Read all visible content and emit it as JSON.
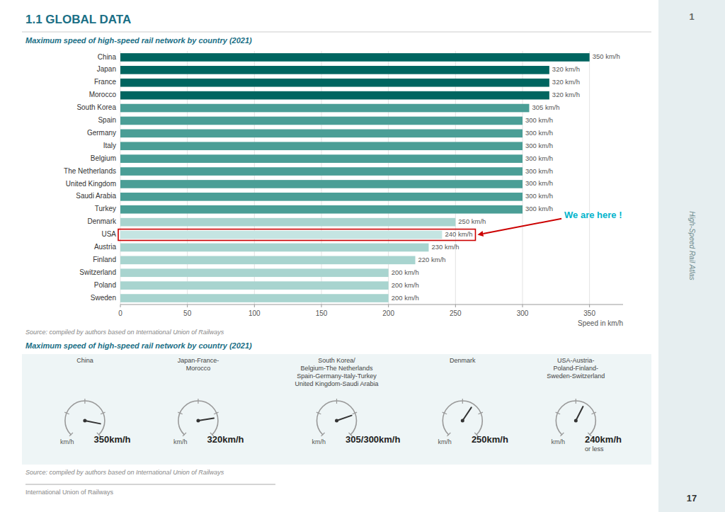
{
  "page": {
    "heading": "1.1 GLOBAL DATA",
    "tab_label": "1",
    "tab_text": "High-Speed Rail Atlas",
    "page_number": "17",
    "footer": "International Union of Railways"
  },
  "chart_data": [
    {
      "type": "bar",
      "orientation": "horizontal",
      "title": "Maximum speed of high-speed rail network by country (2021)",
      "categories": [
        "China",
        "Japan",
        "France",
        "Morocco",
        "South Korea",
        "Spain",
        "Germany",
        "Italy",
        "Belgium",
        "The Netherlands",
        "United Kingdom",
        "Saudi Arabia",
        "Turkey",
        "Denmark",
        "USA",
        "Austria",
        "Finland",
        "Switzerland",
        "Poland",
        "Sweden"
      ],
      "values": [
        350,
        320,
        320,
        320,
        305,
        300,
        300,
        300,
        300,
        300,
        300,
        300,
        300,
        250,
        240,
        230,
        220,
        200,
        200,
        200
      ],
      "value_labels": [
        "350 km/h",
        "320 km/h",
        "320 km/h",
        "320 km/h",
        "305 km/h",
        "300 km/h",
        "300 km/h",
        "300 km/h",
        "300 km/h",
        "300 km/h",
        "300 km/h",
        "300 km/h",
        "300 km/h",
        "250 km/h",
        "240 km/h",
        "230 km/h",
        "220 km/h",
        "200 km/h",
        "200 km/h",
        "200 km/h"
      ],
      "data_labels": true,
      "colors": [
        "#006560",
        "#006560",
        "#006560",
        "#006560",
        "#4a9e96",
        "#4a9e96",
        "#4a9e96",
        "#4a9e96",
        "#4a9e96",
        "#4a9e96",
        "#4a9e96",
        "#4a9e96",
        "#4a9e96",
        "#a8d4cf",
        "#c5e5e2",
        "#a8d4cf",
        "#a8d4cf",
        "#a8d4cf",
        "#a8d4cf",
        "#a8d4cf"
      ],
      "xlim": [
        0,
        375
      ],
      "xticks": [
        0,
        50,
        100,
        150,
        200,
        250,
        300,
        350
      ],
      "grid": true,
      "xlabel": "Speed in km/h",
      "annotations": [
        {
          "text": "We are here !",
          "category": "USA",
          "color": "#00b4cc",
          "box_color": "#cc0000"
        }
      ],
      "source": "Source: compiled by authors based on International Union of Railways"
    },
    {
      "type": "gauge",
      "title": "Maximum speed of high-speed rail network by country (2021)",
      "categories": [
        "China",
        "Japan-France-\nMorocco",
        "South Korea/\nBelgium-The Netherlands\nSpain-Germany-Italy-Turkey\nUnited Kingdom-Saudi Arabia",
        "Denmark",
        "USA-Austria-\nPoland-Finland-\nSweden-Switzerland"
      ],
      "values": [
        350,
        320,
        305,
        250,
        240
      ],
      "value_labels": [
        "350km/h",
        "320km/h",
        "305/300km/h",
        "250km/h",
        "240km/h\nor less"
      ],
      "ylim": [
        0,
        400
      ],
      "yticks": [
        0,
        100,
        200,
        300,
        400
      ],
      "tick_labels": false,
      "ylabel": "km/h",
      "source": "Source: compiled by authors based on International Union of Railways"
    }
  ]
}
